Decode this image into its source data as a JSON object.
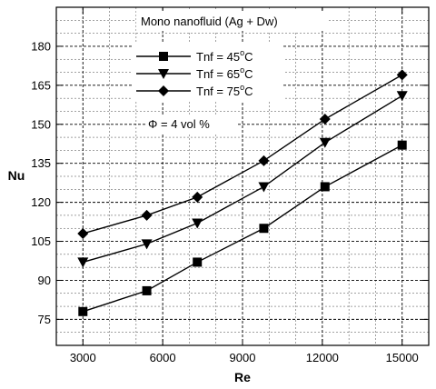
{
  "chart_data": {
    "type": "line",
    "title": "Mono nanofluid (Ag + Dw)",
    "xlabel": "Re",
    "ylabel": "Nu",
    "xlim": [
      2000,
      16000
    ],
    "ylim": [
      65,
      195
    ],
    "x_ticks": [
      3000,
      6000,
      9000,
      12000,
      15000
    ],
    "y_ticks": [
      75,
      90,
      105,
      120,
      135,
      150,
      165,
      180
    ],
    "grid": true,
    "legend_position": "top-center",
    "annotation": "Φ = 4 vol %",
    "series": [
      {
        "name": "Tnf = 45°C",
        "marker": "square",
        "x": [
          3000,
          5400,
          7300,
          9800,
          12100,
          15000
        ],
        "y": [
          78,
          86,
          97,
          110,
          126,
          142
        ]
      },
      {
        "name": "Tnf = 65°C",
        "marker": "triangle-down",
        "x": [
          3000,
          5400,
          7300,
          9800,
          12100,
          15000
        ],
        "y": [
          97,
          104,
          112,
          126,
          143,
          161
        ]
      },
      {
        "name": "Tnf = 75°C",
        "marker": "diamond",
        "x": [
          3000,
          5400,
          7300,
          9800,
          12100,
          15000
        ],
        "y": [
          108,
          115,
          122,
          136,
          152,
          169
        ]
      }
    ],
    "legend_labels": [
      {
        "prefix": "Tnf = 45",
        "sup": "o",
        "suffix": "C"
      },
      {
        "prefix": "Tnf = 65",
        "sup": "o",
        "suffix": "C"
      },
      {
        "prefix": "Tnf = 75",
        "sup": "o",
        "suffix": "C"
      }
    ]
  }
}
